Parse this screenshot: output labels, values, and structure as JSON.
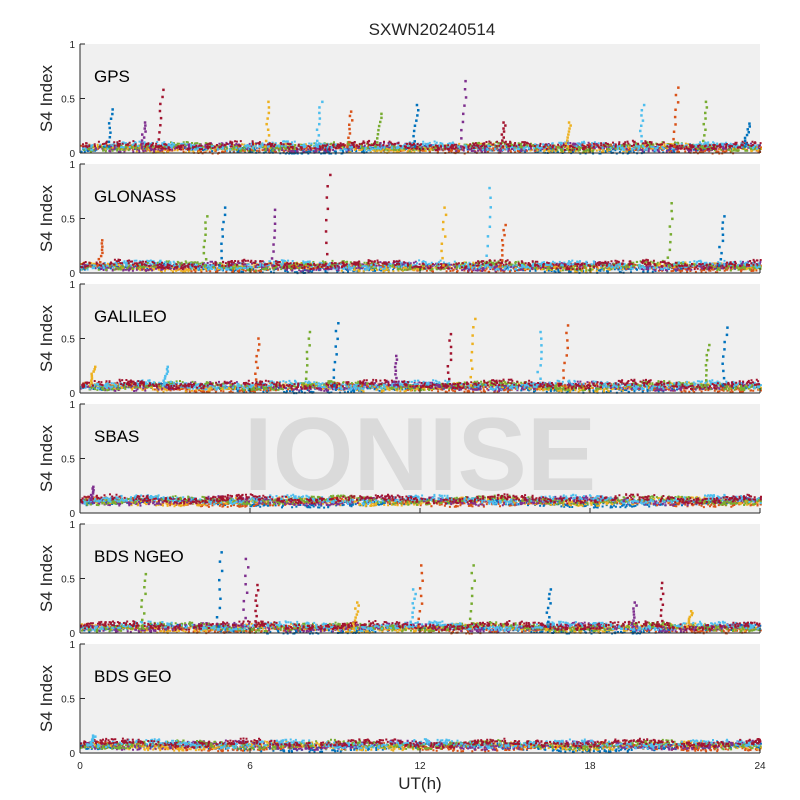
{
  "chart_data": {
    "type": "scatter",
    "title": "SXWN20240514",
    "xlabel": "UT(h)",
    "ylabel": "S4 Index",
    "xlim": [
      0,
      24
    ],
    "ylim": [
      0,
      1
    ],
    "x_ticks": [
      "0",
      "6",
      "12",
      "18",
      "24"
    ],
    "y_ticks": [
      "0",
      "0.5",
      "1"
    ],
    "watermark": "IONISE",
    "grid": false,
    "series_colors": [
      "#0072BD",
      "#D95319",
      "#EDB120",
      "#7E2F8E",
      "#77AC30",
      "#4DBEEE",
      "#A2142F"
    ],
    "panels": [
      {
        "name": "GPS",
        "baseline": 0.06,
        "spikes": [
          {
            "x": 1.1,
            "y": 0.4
          },
          {
            "x": 2.3,
            "y": 0.28
          },
          {
            "x": 2.9,
            "y": 0.58
          },
          {
            "x": 6.7,
            "y": 0.47
          },
          {
            "x": 8.5,
            "y": 0.47
          },
          {
            "x": 9.6,
            "y": 0.38
          },
          {
            "x": 10.6,
            "y": 0.36
          },
          {
            "x": 11.9,
            "y": 0.44
          },
          {
            "x": 13.6,
            "y": 0.66
          },
          {
            "x": 15.0,
            "y": 0.28
          },
          {
            "x": 17.3,
            "y": 0.28
          },
          {
            "x": 19.9,
            "y": 0.44
          },
          {
            "x": 21.1,
            "y": 0.6
          },
          {
            "x": 22.1,
            "y": 0.47
          },
          {
            "x": 23.6,
            "y": 0.27
          }
        ]
      },
      {
        "name": "GLONASS",
        "baseline": 0.07,
        "spikes": [
          {
            "x": 0.8,
            "y": 0.3
          },
          {
            "x": 4.5,
            "y": 0.52
          },
          {
            "x": 5.1,
            "y": 0.6
          },
          {
            "x": 6.9,
            "y": 0.58
          },
          {
            "x": 8.8,
            "y": 0.9
          },
          {
            "x": 12.9,
            "y": 0.6
          },
          {
            "x": 14.5,
            "y": 0.78
          },
          {
            "x": 15.0,
            "y": 0.44
          },
          {
            "x": 20.9,
            "y": 0.64
          },
          {
            "x": 22.7,
            "y": 0.52
          }
        ]
      },
      {
        "name": "GALILEO",
        "baseline": 0.07,
        "spikes": [
          {
            "x": 0.5,
            "y": 0.24
          },
          {
            "x": 3.1,
            "y": 0.24
          },
          {
            "x": 6.3,
            "y": 0.5
          },
          {
            "x": 8.1,
            "y": 0.56
          },
          {
            "x": 9.1,
            "y": 0.64
          },
          {
            "x": 11.2,
            "y": 0.34
          },
          {
            "x": 13.1,
            "y": 0.54
          },
          {
            "x": 13.9,
            "y": 0.68
          },
          {
            "x": 16.3,
            "y": 0.56
          },
          {
            "x": 17.2,
            "y": 0.62
          },
          {
            "x": 22.2,
            "y": 0.44
          },
          {
            "x": 22.8,
            "y": 0.6
          }
        ]
      },
      {
        "name": "SBAS",
        "baseline": 0.12,
        "spikes": [
          {
            "x": 0.5,
            "y": 0.24
          }
        ]
      },
      {
        "name": "BDS NGEO",
        "baseline": 0.06,
        "spikes": [
          {
            "x": 2.3,
            "y": 0.54
          },
          {
            "x": 5.0,
            "y": 0.74
          },
          {
            "x": 5.9,
            "y": 0.68
          },
          {
            "x": 6.3,
            "y": 0.44
          },
          {
            "x": 9.8,
            "y": 0.28
          },
          {
            "x": 11.8,
            "y": 0.4
          },
          {
            "x": 12.1,
            "y": 0.62
          },
          {
            "x": 13.9,
            "y": 0.62
          },
          {
            "x": 16.6,
            "y": 0.4
          },
          {
            "x": 19.6,
            "y": 0.28
          },
          {
            "x": 20.6,
            "y": 0.46
          },
          {
            "x": 21.6,
            "y": 0.2
          }
        ]
      },
      {
        "name": "BDS GEO",
        "baseline": 0.08,
        "spikes": [
          {
            "x": 0.5,
            "y": 0.16
          }
        ]
      }
    ]
  }
}
